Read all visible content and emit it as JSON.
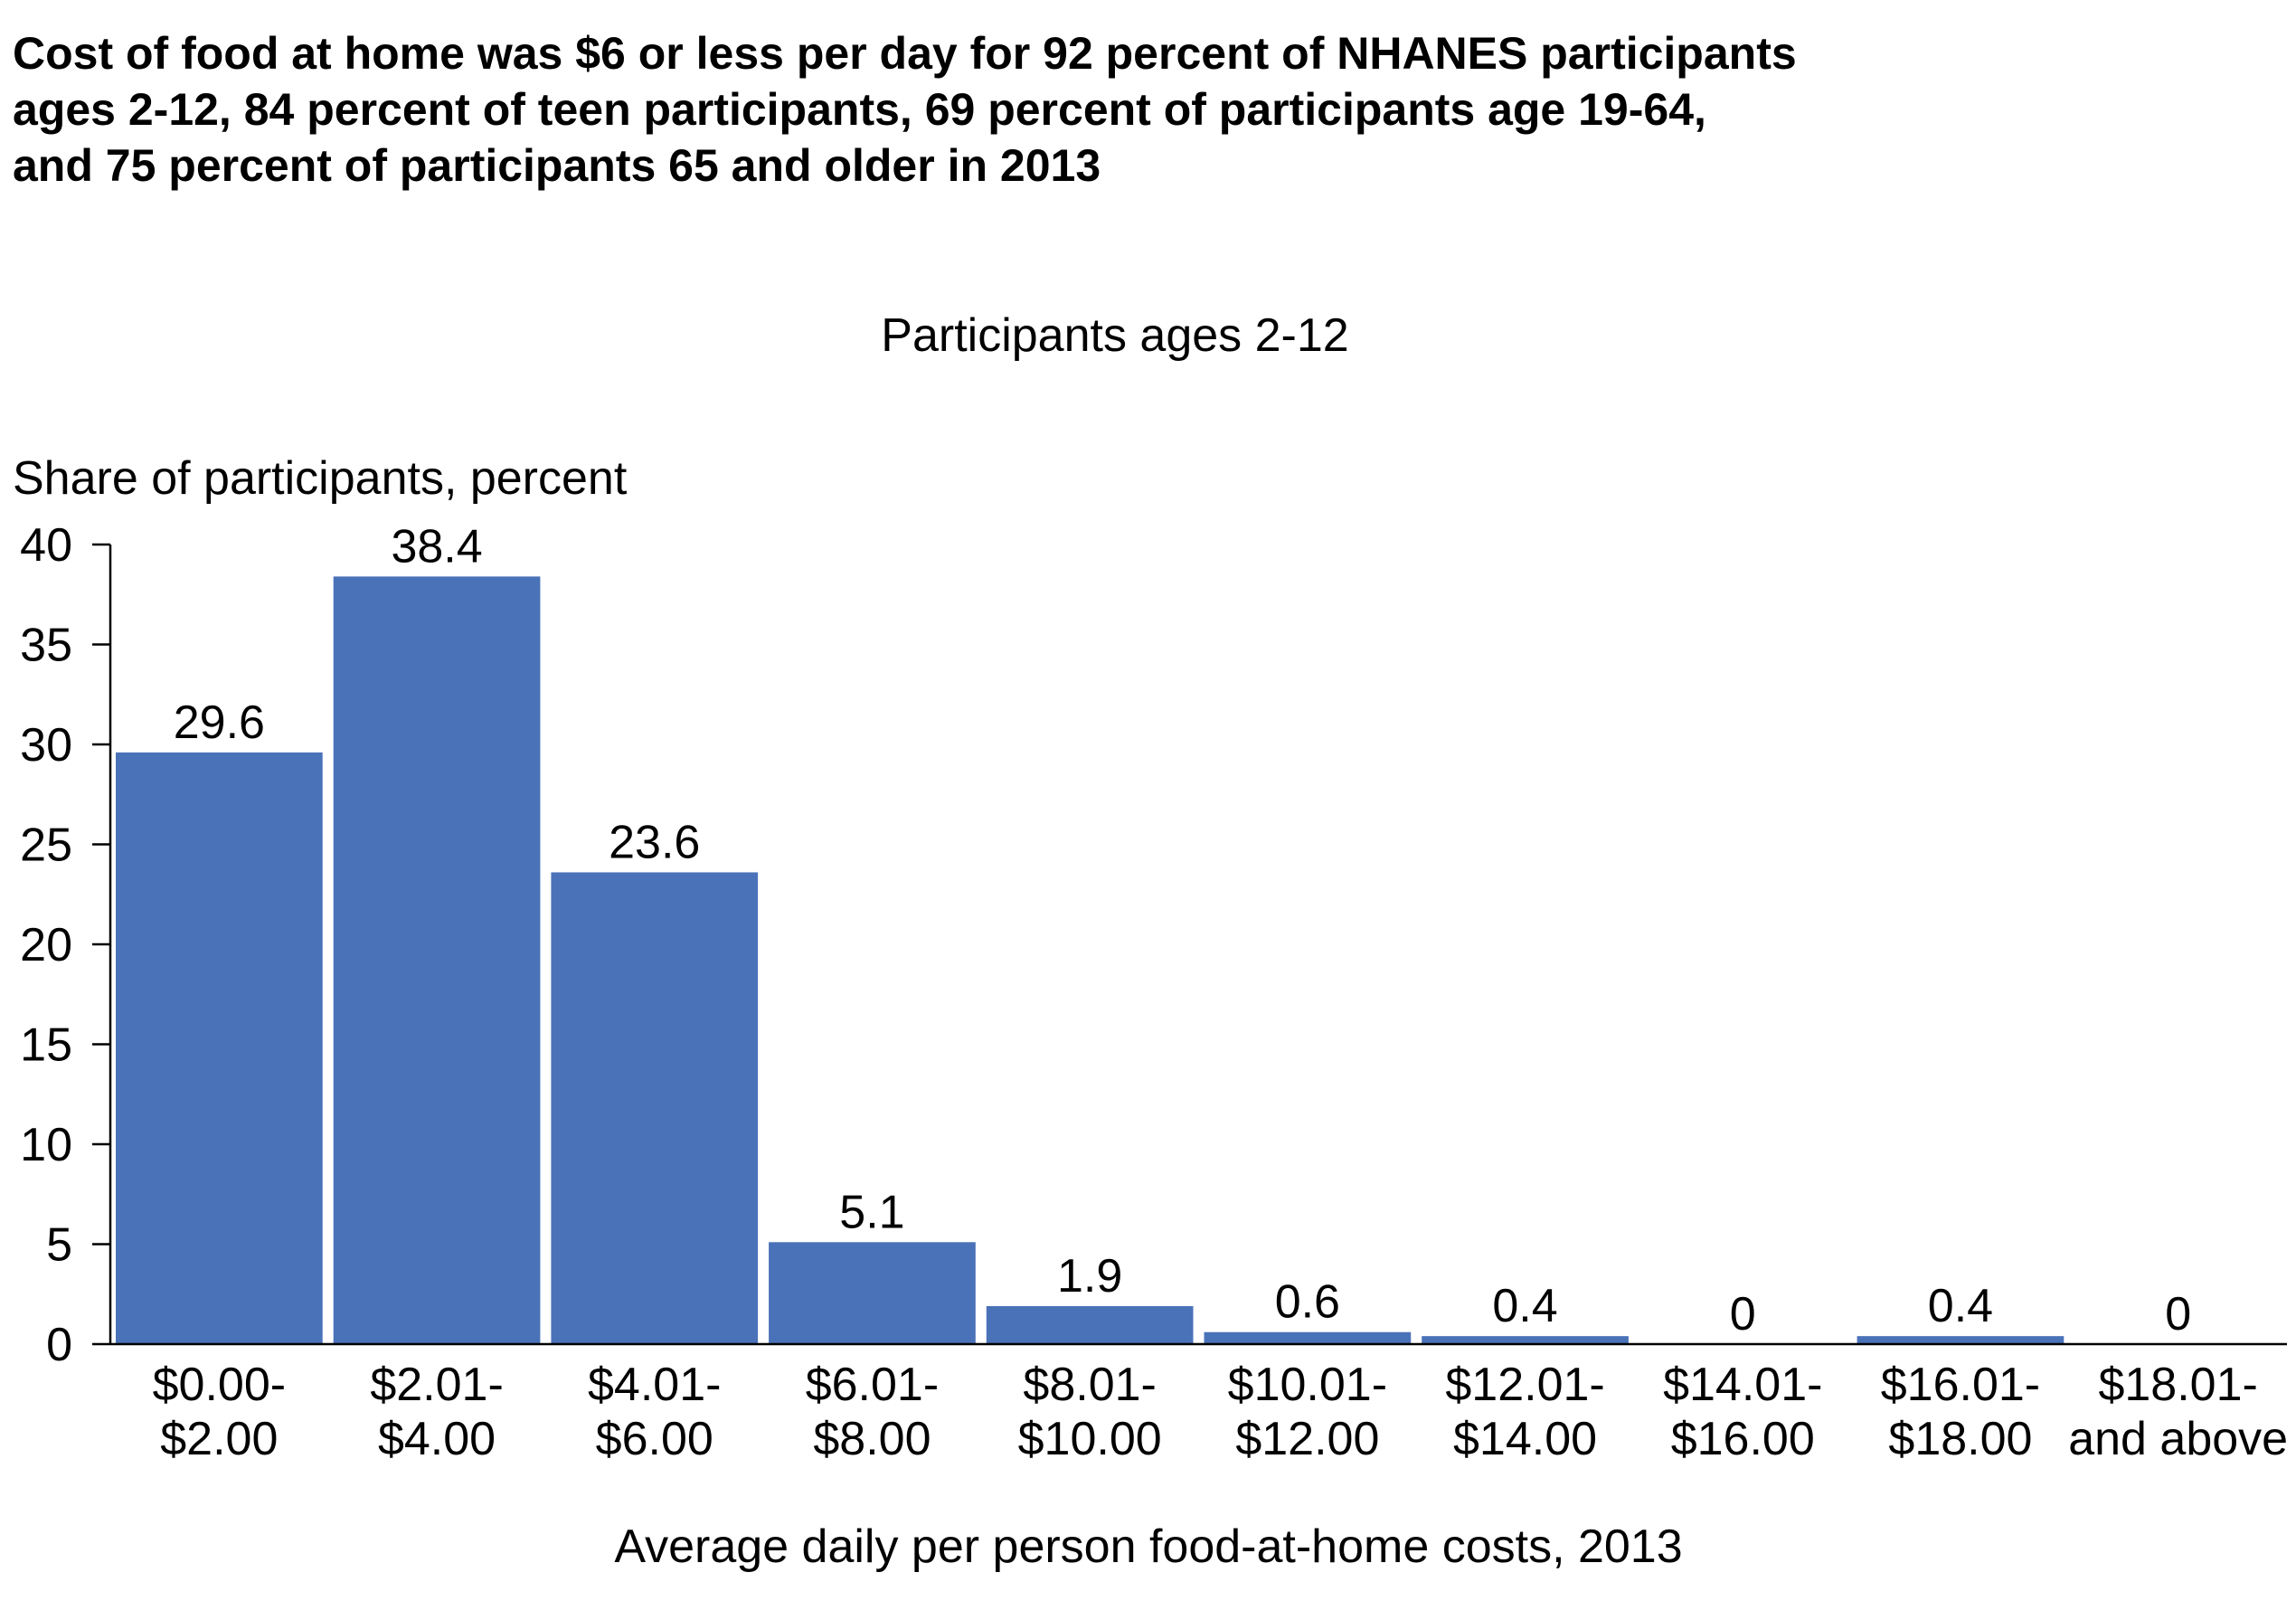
{
  "headline": [
    "Cost of food at home was $6 or less per day for 92 percent of NHANES participants",
    "ages 2-12, 84 percent of teen participants, 69 percent of participants age 19-64,",
    "and 75 percent of participants 65 and older in 2013"
  ],
  "chart_data": {
    "type": "bar",
    "title": "Participants ages 2-12",
    "ylabel": "Share of participants, percent",
    "xlabel": "Average daily per person food-at-home costs, 2013",
    "ylim": [
      0,
      40
    ],
    "yticks": [
      0,
      5,
      10,
      15,
      20,
      25,
      30,
      35,
      40
    ],
    "grid": false,
    "bar_color": "#4A72B8",
    "categories": [
      [
        "$0.00-",
        "$2.00"
      ],
      [
        "$2.01-",
        "$4.00"
      ],
      [
        "$4.01-",
        "$6.00"
      ],
      [
        "$6.01-",
        "$8.00"
      ],
      [
        "$8.01-",
        "$10.00"
      ],
      [
        "$10.01-",
        "$12.00"
      ],
      [
        "$12.01-",
        "$14.00"
      ],
      [
        "$14.01-",
        "$16.00"
      ],
      [
        "$16.01-",
        "$18.00"
      ],
      [
        "$18.01-",
        "and above"
      ]
    ],
    "values": [
      29.6,
      38.4,
      23.6,
      5.1,
      1.9,
      0.6,
      0.4,
      0,
      0.4,
      0
    ],
    "value_labels": [
      "29.6",
      "38.4",
      "23.6",
      "5.1",
      "1.9",
      "0.6",
      "0.4",
      "0",
      "0.4",
      "0"
    ]
  }
}
